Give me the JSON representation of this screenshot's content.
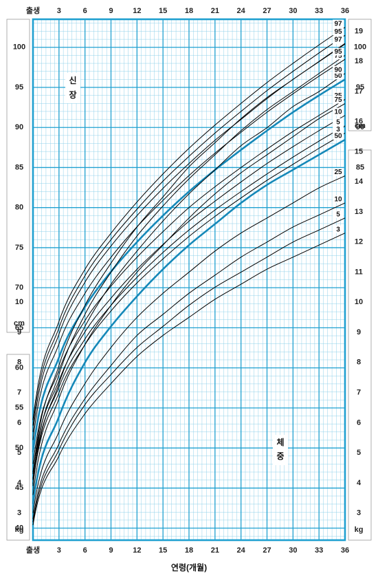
{
  "title": "",
  "x_axis": {
    "label": "연령(개월)",
    "ticks": [
      "출생",
      "3",
      "6",
      "9",
      "12",
      "15",
      "18",
      "21",
      "24",
      "27",
      "30",
      "33",
      "36"
    ],
    "range": [
      0,
      36
    ]
  },
  "height_scale": {
    "label": [
      "신",
      "장"
    ],
    "unit": "cm",
    "left_ticks": [
      "100",
      "95",
      "90",
      "85",
      "80",
      "75",
      "70",
      "65",
      "60",
      "55",
      "50",
      "45",
      "40"
    ],
    "right_ticks": [
      "100",
      "95",
      "90",
      "85"
    ],
    "range": [
      38.5,
      103.5
    ]
  },
  "weight_scale": {
    "label": [
      "체",
      "중"
    ],
    "unit": "kg",
    "right_upper_ticks": [
      "19",
      "18",
      "17",
      "16",
      "15",
      "14",
      "13",
      "12",
      "11"
    ],
    "both_lower_ticks": [
      "10",
      "9",
      "8",
      "7",
      "6",
      "5",
      "4",
      "3"
    ],
    "range": [
      2.1,
      19.4
    ]
  },
  "colors": {
    "grid": "#1fa0d0",
    "grid_minor": "#8fd0ea",
    "median": "#1588b8",
    "curve": "#000000"
  },
  "chart_data": [
    {
      "type": "line",
      "title": "",
      "xlabel": "연령(개월)",
      "ylabel": "신장 (cm)",
      "xlim": [
        0,
        36
      ],
      "ylim": [
        38.5,
        103.5
      ],
      "grid": true,
      "x": [
        0,
        3,
        6,
        9,
        12,
        15,
        18,
        21,
        24,
        27,
        30,
        33,
        36
      ],
      "series": [
        {
          "name": "97",
          "values": [
            53.5,
            65.8,
            72.3,
            76.8,
            80.7,
            84.2,
            87.4,
            90.3,
            93.0,
            95.6,
            98.0,
            100.3,
            102.5
          ]
        },
        {
          "name": "95",
          "values": [
            52.8,
            65.0,
            71.5,
            76.0,
            79.8,
            83.3,
            86.4,
            89.3,
            92.0,
            94.6,
            97.0,
            99.3,
            101.5
          ]
        },
        {
          "name": "90",
          "values": [
            52.0,
            64.2,
            70.7,
            75.2,
            79.0,
            82.4,
            85.5,
            88.4,
            91.0,
            93.6,
            96.0,
            98.2,
            100.4
          ]
        },
        {
          "name": "75",
          "values": [
            51.0,
            63.0,
            69.3,
            73.8,
            77.6,
            80.9,
            84.0,
            86.8,
            89.4,
            91.9,
            94.2,
            96.4,
            98.5
          ]
        },
        {
          "name": "50",
          "values": [
            49.5,
            61.3,
            67.6,
            72.0,
            75.7,
            79.0,
            82.0,
            84.7,
            87.2,
            89.6,
            91.9,
            94.0,
            96.0
          ]
        },
        {
          "name": "25",
          "values": [
            48.0,
            59.7,
            65.9,
            70.2,
            73.8,
            77.0,
            80.0,
            82.6,
            85.0,
            87.3,
            89.5,
            91.5,
            93.5
          ]
        },
        {
          "name": "10",
          "values": [
            47.0,
            58.4,
            64.5,
            68.7,
            72.3,
            75.4,
            78.3,
            80.8,
            83.2,
            85.5,
            87.6,
            89.6,
            91.5
          ]
        },
        {
          "name": "5",
          "values": [
            46.2,
            57.6,
            63.6,
            67.8,
            71.3,
            74.4,
            77.2,
            79.7,
            82.0,
            84.2,
            86.3,
            88.3,
            90.2
          ]
        },
        {
          "name": "3",
          "values": [
            45.5,
            56.9,
            62.9,
            67.1,
            70.6,
            73.6,
            76.4,
            78.9,
            81.2,
            83.4,
            85.4,
            87.4,
            89.3
          ]
        }
      ]
    },
    {
      "type": "line",
      "title": "",
      "xlabel": "연령(개월)",
      "ylabel": "체중 (kg)",
      "xlim": [
        0,
        36
      ],
      "ylim": [
        2.1,
        19.4
      ],
      "grid": true,
      "x": [
        0,
        3,
        6,
        9,
        12,
        15,
        18,
        21,
        24,
        27,
        30,
        33,
        36
      ],
      "series": [
        {
          "name": "97",
          "values": [
            4.3,
            7.9,
            9.9,
            11.3,
            12.5,
            13.5,
            14.5,
            15.3,
            16.1,
            16.8,
            17.4,
            18.0,
            18.6
          ]
        },
        {
          "name": "95",
          "values": [
            4.1,
            7.6,
            9.6,
            11.0,
            12.2,
            13.2,
            14.1,
            14.9,
            15.7,
            16.4,
            17.0,
            17.6,
            18.2
          ]
        },
        {
          "name": "90",
          "values": [
            3.9,
            7.3,
            9.2,
            10.6,
            11.7,
            12.7,
            13.6,
            14.4,
            15.2,
            15.8,
            16.5,
            17.0,
            17.6
          ]
        },
        {
          "name": "75",
          "values": [
            3.6,
            6.8,
            8.6,
            9.9,
            11.0,
            11.9,
            12.8,
            13.6,
            14.3,
            14.9,
            15.5,
            16.1,
            16.6
          ]
        },
        {
          "name": "50",
          "values": [
            3.3,
            6.2,
            8.0,
            9.2,
            10.2,
            11.1,
            11.9,
            12.6,
            13.3,
            13.9,
            14.4,
            14.9,
            15.4
          ]
        },
        {
          "name": "25",
          "values": [
            3.0,
            5.7,
            7.3,
            8.5,
            9.5,
            10.3,
            11.0,
            11.7,
            12.3,
            12.8,
            13.3,
            13.8,
            14.2
          ]
        },
        {
          "name": "10",
          "values": [
            2.8,
            5.3,
            6.8,
            7.9,
            8.9,
            9.6,
            10.3,
            10.9,
            11.5,
            12.0,
            12.5,
            12.9,
            13.3
          ]
        },
        {
          "name": "5",
          "values": [
            2.7,
            5.1,
            6.6,
            7.6,
            8.5,
            9.2,
            9.9,
            10.5,
            11.0,
            11.5,
            12.0,
            12.4,
            12.8
          ]
        },
        {
          "name": "3",
          "values": [
            2.6,
            4.9,
            6.3,
            7.3,
            8.2,
            8.9,
            9.5,
            10.1,
            10.6,
            11.1,
            11.5,
            11.9,
            12.3
          ]
        }
      ]
    }
  ]
}
